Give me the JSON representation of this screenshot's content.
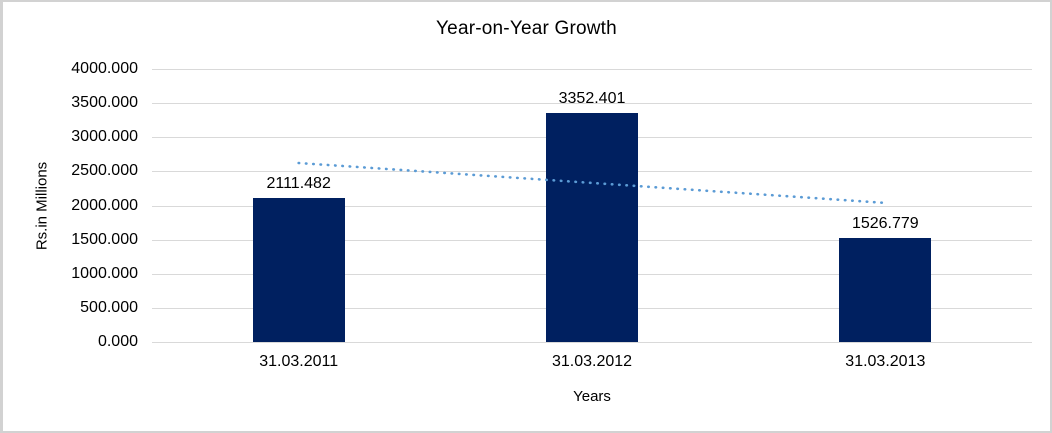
{
  "chart_data": {
    "type": "bar",
    "title": "Year-on-Year Growth",
    "xlabel": "Years",
    "ylabel": "Rs.in Millions",
    "categories": [
      "31.03.2011",
      "31.03.2012",
      "31.03.2013"
    ],
    "values": [
      2111.482,
      3352.401,
      1526.779
    ],
    "data_labels": [
      "2111.482",
      "3352.401",
      "1526.779"
    ],
    "ylim": [
      0,
      4000
    ],
    "ytick_step": 500,
    "ytick_labels": [
      "0.000",
      "500.000",
      "1000.000",
      "1500.000",
      "2000.000",
      "2500.000",
      "3000.000",
      "3500.000",
      "4000.000"
    ],
    "grid": "horizontal",
    "legend_position": "none",
    "bar_color": "#002060",
    "gridline_color": "#d9d9d9",
    "text_color": "#000000",
    "trendline": {
      "type": "linear",
      "style": "dotted",
      "color": "#5b9bd5",
      "start_value": 2622.6,
      "end_value": 2037.9
    }
  }
}
